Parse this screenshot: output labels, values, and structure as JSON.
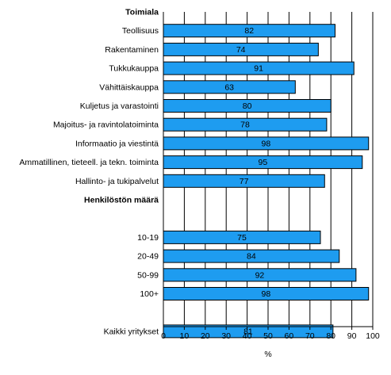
{
  "chart_data": {
    "type": "bar",
    "orientation": "horizontal",
    "bar_color": "#1e9cf0",
    "bar_stroke": "#000000",
    "grid": true,
    "xlim": [
      0,
      100
    ],
    "xticks": [
      "0",
      "10",
      "20",
      "30",
      "40",
      "50",
      "60",
      "70",
      "80",
      "90",
      "100"
    ],
    "xlabel": "%",
    "rows": [
      {
        "kind": "section",
        "label": "Toimiala"
      },
      {
        "kind": "bar",
        "label": "Teollisuus",
        "value": 82
      },
      {
        "kind": "bar",
        "label": "Rakentaminen",
        "value": 74
      },
      {
        "kind": "bar",
        "label": "Tukkukauppa",
        "value": 91
      },
      {
        "kind": "bar",
        "label": "Vähittäiskauppa",
        "value": 63
      },
      {
        "kind": "bar",
        "label": "Kuljetus ja varastointi",
        "value": 80
      },
      {
        "kind": "bar",
        "label": "Majoitus- ja ravintolatoiminta",
        "value": 78
      },
      {
        "kind": "bar",
        "label": "Informaatio ja viestintä",
        "value": 98
      },
      {
        "kind": "bar",
        "label": "Ammatillinen, tieteell. ja tekn. toiminta",
        "value": 95
      },
      {
        "kind": "bar",
        "label": "Hallinto- ja tukipalvelut",
        "value": 77
      },
      {
        "kind": "section",
        "label": "Henkilöstön määrä"
      },
      {
        "kind": "blank"
      },
      {
        "kind": "bar",
        "label": "10-19",
        "value": 75
      },
      {
        "kind": "bar",
        "label": "20-49",
        "value": 84
      },
      {
        "kind": "bar",
        "label": "50-99",
        "value": 92
      },
      {
        "kind": "bar",
        "label": "100+",
        "value": 98
      },
      {
        "kind": "blank"
      },
      {
        "kind": "bar",
        "label": "Kaikki yritykset",
        "value": 81
      }
    ]
  }
}
